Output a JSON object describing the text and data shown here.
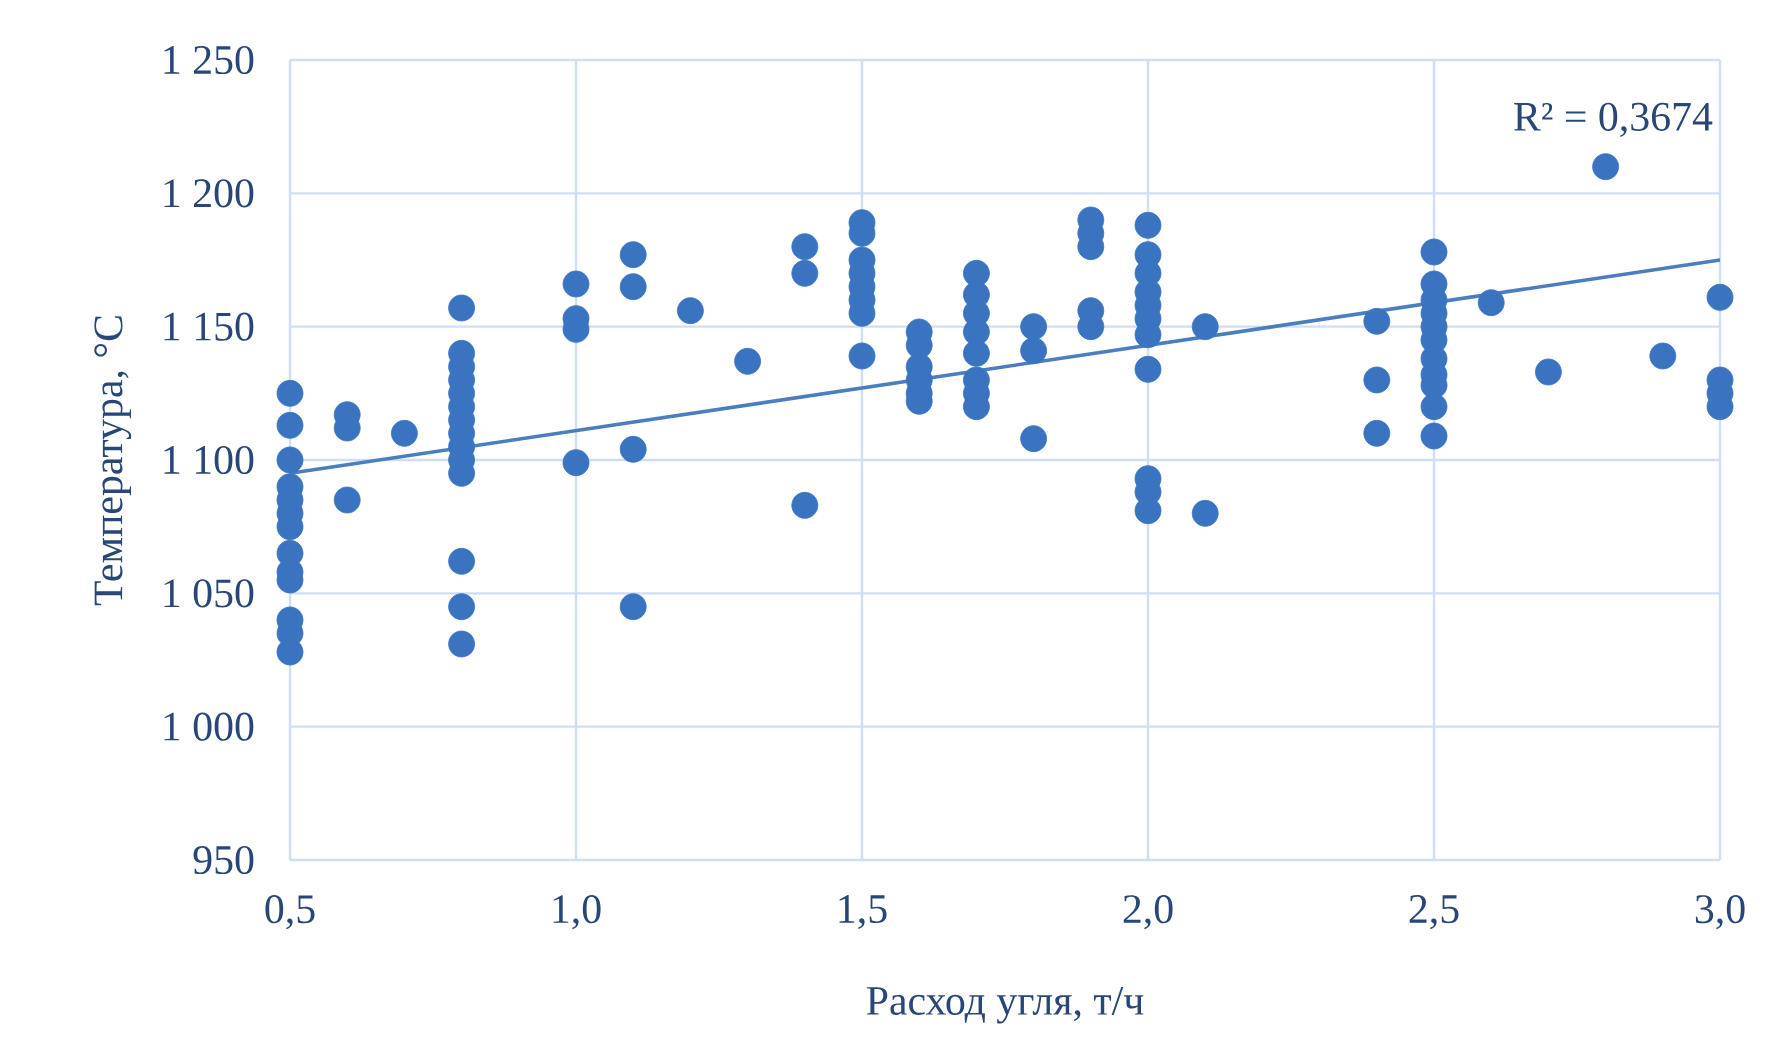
{
  "chart_data": {
    "type": "scatter",
    "xlabel": "Расход угля, т/ч",
    "ylabel": "Температура, °С",
    "series": [
      {
        "color": "#3a73c0",
        "marker": "circle",
        "x": [
          0.5,
          0.5,
          0.5,
          0.5,
          0.5,
          0.5,
          0.5,
          0.5,
          0.5,
          0.5,
          0.5,
          0.5,
          0.5,
          0.6,
          0.6,
          0.6,
          0.7,
          0.8,
          0.8,
          0.8,
          0.8,
          0.8,
          0.8,
          0.8,
          0.8,
          0.8,
          0.8,
          0.8,
          0.8,
          0.8,
          0.8,
          1.0,
          1.0,
          1.0,
          1.0,
          1.1,
          1.1,
          1.1,
          1.1,
          1.2,
          1.3,
          1.4,
          1.4,
          1.4,
          1.5,
          1.5,
          1.5,
          1.5,
          1.5,
          1.5,
          1.5,
          1.5,
          1.6,
          1.6,
          1.6,
          1.6,
          1.6,
          1.6,
          1.7,
          1.7,
          1.7,
          1.7,
          1.7,
          1.7,
          1.7,
          1.7,
          1.8,
          1.8,
          1.8,
          1.9,
          1.9,
          1.9,
          1.9,
          1.9,
          2.0,
          2.0,
          2.0,
          2.0,
          2.0,
          2.0,
          2.0,
          2.0,
          2.0,
          2.0,
          2.0,
          2.1,
          2.1,
          2.4,
          2.4,
          2.4,
          2.5,
          2.5,
          2.5,
          2.5,
          2.5,
          2.5,
          2.5,
          2.5,
          2.5,
          2.5,
          2.5,
          2.6,
          2.7,
          2.8,
          2.9,
          3.0,
          3.0,
          3.0,
          3.0
        ],
        "values": [
          1125,
          1113,
          1100,
          1090,
          1085,
          1080,
          1075,
          1065,
          1058,
          1055,
          1040,
          1035,
          1028,
          1117,
          1112,
          1085,
          1110,
          1157,
          1140,
          1135,
          1130,
          1125,
          1120,
          1115,
          1110,
          1105,
          1100,
          1095,
          1062,
          1045,
          1031,
          1166,
          1153,
          1149,
          1099,
          1177,
          1165,
          1104,
          1045,
          1156,
          1137,
          1180,
          1170,
          1083,
          1189,
          1185,
          1175,
          1170,
          1165,
          1160,
          1155,
          1139,
          1148,
          1143,
          1135,
          1130,
          1125,
          1122,
          1170,
          1162,
          1155,
          1148,
          1140,
          1130,
          1125,
          1120,
          1150,
          1141,
          1108,
          1190,
          1185,
          1180,
          1156,
          1150,
          1188,
          1177,
          1170,
          1163,
          1158,
          1153,
          1147,
          1134,
          1093,
          1088,
          1081,
          1150,
          1080,
          1152,
          1130,
          1110,
          1178,
          1166,
          1160,
          1155,
          1150,
          1145,
          1138,
          1132,
          1128,
          1120,
          1109,
          1159,
          1133,
          1210,
          1139,
          1161,
          1130,
          1125,
          1120
        ]
      },
      {
        "type": "line",
        "color": "#4a7ebf",
        "x": [
          0.5,
          3.0
        ],
        "values": [
          1095,
          1175
        ]
      }
    ],
    "annotations": [
      "R² = 0,3674"
    ],
    "xlim": [
      0.5,
      3.0
    ],
    "ylim": [
      950,
      1250
    ],
    "xticks": [
      {
        "value": 0.5,
        "label": "0,5"
      },
      {
        "value": 1.0,
        "label": "1,0"
      },
      {
        "value": 1.5,
        "label": "1,5"
      },
      {
        "value": 2.0,
        "label": "2,0"
      },
      {
        "value": 2.5,
        "label": "2,5"
      },
      {
        "value": 3.0,
        "label": "3,0"
      }
    ],
    "yticks": [
      {
        "value": 950,
        "label": "950"
      },
      {
        "value": 1000,
        "label": "1 000"
      },
      {
        "value": 1050,
        "label": "1 050"
      },
      {
        "value": 1100,
        "label": "1 100"
      },
      {
        "value": 1150,
        "label": "1 150"
      },
      {
        "value": 1200,
        "label": "1 200"
      },
      {
        "value": 1250,
        "label": "1 250"
      }
    ],
    "grid": true
  }
}
